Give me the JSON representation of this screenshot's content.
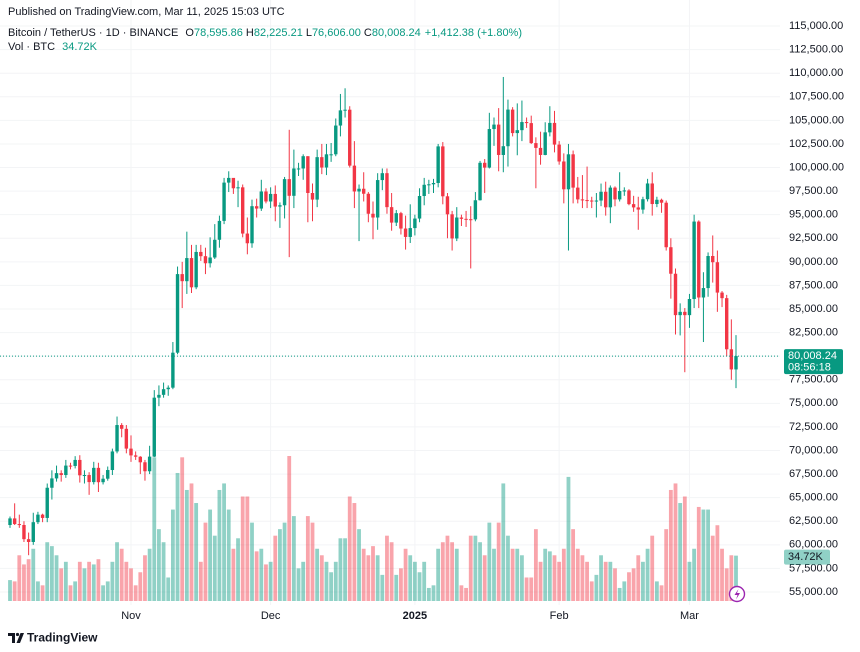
{
  "chart_data": {
    "type": "candlestick",
    "published": "Published on TradingView.com, Mar 11, 2025 15:03 UTC",
    "legend": {
      "symbol": "Bitcoin / TetherUS · 1D · BINANCE",
      "items": [
        {
          "key": "O",
          "value": "78,595.86"
        },
        {
          "key": "H",
          "value": "82,225.21"
        },
        {
          "key": "L",
          "value": "76,606.00"
        },
        {
          "key": "C",
          "value": "80,008.24"
        }
      ],
      "change": "+1,412.38 (+1.80%)",
      "volume_name": "Vol · BTC",
      "volume_value": "34.72K"
    },
    "price_tag": {
      "price": "80,008.24",
      "countdown": "08:56:18"
    },
    "footer": "TradingView",
    "up_color": "#089981",
    "down_color": "#f23645",
    "grid": true,
    "categories": [
      null,
      null,
      null,
      null,
      null,
      null,
      null,
      null,
      null,
      null,
      null,
      null,
      null,
      null,
      null,
      null,
      null,
      null,
      null,
      null,
      null,
      null,
      null,
      null,
      null,
      null,
      "Nov",
      null,
      null,
      null,
      null,
      null,
      null,
      null,
      null,
      null,
      null,
      null,
      null,
      null,
      null,
      null,
      null,
      null,
      null,
      null,
      null,
      null,
      null,
      null,
      null,
      null,
      null,
      null,
      null,
      null,
      "Dec",
      null,
      null,
      null,
      null,
      null,
      null,
      null,
      null,
      null,
      null,
      null,
      null,
      null,
      null,
      null,
      null,
      null,
      null,
      null,
      null,
      null,
      null,
      null,
      null,
      null,
      null,
      null,
      null,
      null,
      null,
      "2025",
      null,
      null,
      null,
      null,
      null,
      null,
      null,
      null,
      null,
      null,
      null,
      null,
      null,
      null,
      null,
      null,
      null,
      null,
      null,
      null,
      null,
      null,
      null,
      null,
      null,
      null,
      null,
      null,
      null,
      null,
      "Feb",
      null,
      null,
      null,
      null,
      null,
      null,
      null,
      null,
      null,
      null,
      null,
      null,
      null,
      null,
      null,
      null,
      null,
      null,
      null,
      null,
      null,
      null,
      null,
      null,
      null,
      null,
      null,
      "Mar",
      null,
      null,
      null,
      null,
      null,
      null,
      null,
      null,
      null,
      null
    ],
    "open": [
      62100,
      62800,
      62200,
      62100,
      60600,
      60300,
      62400,
      63200,
      62850,
      66050,
      67040,
      67600,
      67400,
      68400,
      68360,
      69000,
      67370,
      67400,
      66650,
      68160,
      66640,
      67010,
      67930,
      69900,
      72700,
      72300,
      70200,
      69480,
      69340,
      68750,
      67800,
      69350,
      75600,
      75900,
      76500,
      76660,
      80370,
      88700,
      87950,
      90400,
      87300,
      91050,
      90600,
      89850,
      90460,
      92340,
      94340,
      98400,
      98900,
      97800,
      97900,
      93000,
      91970,
      95900,
      95650,
      97460,
      96400,
      97200,
      95860,
      96000,
      98770,
      97000,
      99900,
      99900,
      101200,
      97300,
      96600,
      101100,
      100000,
      101400,
      101400,
      104450,
      106060,
      106130,
      100200,
      97460,
      97750,
      97220,
      95100,
      94700,
      98670,
      99400,
      95800,
      94160,
      95160,
      93530,
      92640,
      93580,
      94590,
      96980,
      98170,
      98220,
      98360,
      102240,
      96950,
      95040,
      92480,
      94700,
      94560,
      94520,
      94500,
      96530,
      100500,
      99990,
      104080,
      104550,
      101330,
      102260,
      106140,
      103650,
      103960,
      104820,
      104710,
      102590,
      102080,
      101330,
      103730,
      104730,
      102430,
      100640,
      97690,
      101400,
      97870,
      96620,
      96550,
      96500,
      96480,
      96500,
      97430,
      95780,
      97870,
      96620,
      97510,
      97570,
      96120,
      95770,
      95540,
      96640,
      98310,
      96130,
      96580,
      96270,
      91550,
      88740,
      84350,
      84700,
      84350,
      86060,
      94270,
      86220,
      87220,
      90620,
      89960,
      86740,
      86150,
      80730,
      78595.86
    ],
    "high": [
      63000,
      64400,
      63200,
      62500,
      61300,
      63400,
      63500,
      63300,
      66500,
      67900,
      68400,
      67900,
      69000,
      68700,
      69400,
      69500,
      67900,
      67700,
      68800,
      68700,
      67400,
      68300,
      70200,
      73600,
      72900,
      72700,
      71600,
      69900,
      69400,
      69000,
      70500,
      76400,
      76900,
      77200,
      76900,
      81500,
      89500,
      90000,
      93200,
      91800,
      91800,
      91800,
      91500,
      92600,
      94000,
      94900,
      98900,
      99600,
      98800,
      98600,
      98200,
      94700,
      96600,
      96700,
      98700,
      97800,
      97900,
      98100,
      96300,
      99000,
      104000,
      101900,
      100500,
      101400,
      101200,
      98300,
      101900,
      102500,
      102500,
      102600,
      105200,
      107800,
      108400,
      106500,
      102800,
      98200,
      99500,
      97400,
      96400,
      99400,
      99900,
      99900,
      97300,
      95500,
      95300,
      94900,
      96100,
      95000,
      97800,
      98900,
      98700,
      98800,
      102500,
      102700,
      97300,
      95400,
      95800,
      95000,
      95400,
      95900,
      97400,
      100700,
      100900,
      105800,
      105300,
      106300,
      109600,
      107200,
      106400,
      106800,
      107100,
      105300,
      105500,
      103200,
      103800,
      104800,
      106500,
      106000,
      102800,
      101500,
      102500,
      101800,
      99000,
      99200,
      100100,
      96900,
      97300,
      98300,
      98500,
      98100,
      98000,
      99500,
      97900,
      97700,
      97000,
      96900,
      96900,
      98800,
      99500,
      96900,
      96700,
      96500,
      92500,
      89300,
      85600,
      85100,
      86600,
      95000,
      94400,
      88900,
      91000,
      92800,
      91200,
      86900,
      86500,
      83900,
      82225.21
    ],
    "low": [
      61800,
      62100,
      61800,
      60300,
      58900,
      60000,
      62200,
      62400,
      62400,
      64800,
      66700,
      66700,
      67100,
      68000,
      68100,
      66600,
      66500,
      65300,
      66400,
      65600,
      66400,
      66800,
      67400,
      69700,
      71400,
      69700,
      68800,
      69000,
      67500,
      66800,
      67500,
      69300,
      74700,
      75600,
      75800,
      76500,
      80200,
      85100,
      86600,
      86700,
      87100,
      90100,
      88700,
      89400,
      90300,
      91500,
      94000,
      97400,
      97200,
      95800,
      92600,
      90800,
      91500,
      94700,
      95400,
      96200,
      95700,
      94300,
      93600,
      94600,
      90500,
      95700,
      99100,
      98700,
      94200,
      94300,
      95800,
      99300,
      99200,
      100600,
      101200,
      103300,
      105300,
      100000,
      95700,
      92200,
      96400,
      94200,
      92400,
      93400,
      97600,
      95100,
      93300,
      93800,
      92900,
      91300,
      92000,
      92800,
      94200,
      96000,
      97200,
      97300,
      97900,
      96100,
      92500,
      91200,
      92200,
      93800,
      93700,
      89300,
      94300,
      96500,
      97300,
      99900,
      102300,
      99600,
      99500,
      100100,
      103300,
      101300,
      102800,
      104200,
      102500,
      97800,
      100300,
      101300,
      103300,
      101600,
      100300,
      96200,
      91200,
      96200,
      96200,
      95700,
      95700,
      95700,
      94700,
      95900,
      94900,
      94100,
      95900,
      96400,
      97000,
      96000,
      95300,
      93400,
      95100,
      96400,
      94900,
      95800,
      95200,
      91200,
      86100,
      82300,
      82200,
      78300,
      83000,
      85100,
      85100,
      81500,
      86300,
      87800,
      84700,
      85200,
      80000,
      77500,
      76606
    ],
    "close": [
      62800,
      62200,
      62100,
      60600,
      60300,
      62400,
      63200,
      62850,
      66050,
      67040,
      67600,
      67400,
      68400,
      68360,
      69000,
      67370,
      67400,
      66650,
      68160,
      66640,
      67010,
      67930,
      69900,
      72700,
      72300,
      70200,
      69480,
      69340,
      68750,
      67800,
      69350,
      75600,
      75900,
      76500,
      76660,
      80370,
      88700,
      87950,
      90400,
      87300,
      91050,
      90600,
      89850,
      90460,
      92340,
      94340,
      98400,
      98900,
      97800,
      97900,
      93000,
      91970,
      95900,
      95650,
      97460,
      96400,
      97200,
      95860,
      96000,
      98770,
      97000,
      99900,
      99900,
      101200,
      97300,
      96600,
      101100,
      100000,
      101400,
      101400,
      104450,
      106060,
      106130,
      100200,
      97460,
      97750,
      97220,
      95100,
      94700,
      98670,
      99400,
      95800,
      94160,
      95160,
      93530,
      92640,
      93580,
      94590,
      96980,
      98170,
      98220,
      98360,
      102240,
      96950,
      95040,
      92480,
      94700,
      94560,
      94520,
      94500,
      96530,
      100500,
      99990,
      104080,
      104550,
      101330,
      102260,
      106140,
      103650,
      103960,
      104820,
      104710,
      102590,
      102080,
      101330,
      103730,
      104730,
      102430,
      100640,
      97690,
      101400,
      97870,
      96620,
      96550,
      96500,
      96480,
      96500,
      97430,
      95780,
      97870,
      96620,
      97510,
      97570,
      96120,
      95770,
      95540,
      96640,
      98310,
      96130,
      96580,
      96270,
      91550,
      88740,
      84350,
      84700,
      84350,
      86060,
      94270,
      86220,
      87220,
      90620,
      89960,
      86740,
      86150,
      80730,
      78595.86,
      80008.24
    ],
    "volume": [
      16000,
      15000,
      35000,
      28000,
      32000,
      40000,
      15000,
      12000,
      45000,
      42000,
      35000,
      25000,
      30000,
      12000,
      15000,
      30000,
      25000,
      30000,
      28000,
      32000,
      12000,
      15000,
      30000,
      45000,
      40000,
      30000,
      25000,
      12000,
      22000,
      35000,
      40000,
      110000,
      55000,
      45000,
      18000,
      70000,
      98000,
      110000,
      85000,
      90000,
      75000,
      30000,
      60000,
      70000,
      50000,
      85000,
      90000,
      70000,
      40000,
      48000,
      80000,
      80000,
      60000,
      38000,
      40000,
      28000,
      30000,
      50000,
      55000,
      60000,
      111000,
      65000,
      25000,
      30000,
      65000,
      60000,
      40000,
      35000,
      30000,
      22000,
      30000,
      48000,
      48000,
      80000,
      75000,
      55000,
      40000,
      35000,
      42000,
      35000,
      20000,
      50000,
      45000,
      20000,
      25000,
      40000,
      35000,
      30000,
      22000,
      30000,
      10000,
      12000,
      40000,
      45000,
      50000,
      45000,
      40000,
      12000,
      10000,
      50000,
      50000,
      45000,
      35000,
      60000,
      40000,
      60000,
      90000,
      50000,
      40000,
      40000,
      35000,
      18000,
      18000,
      55000,
      30000,
      40000,
      38000,
      35000,
      30000,
      40000,
      95000,
      55000,
      40000,
      35000,
      30000,
      15000,
      20000,
      35000,
      30000,
      30000,
      25000,
      10000,
      15000,
      22000,
      25000,
      35000,
      30000,
      40000,
      50000,
      15000,
      12000,
      55000,
      85000,
      90000,
      75000,
      80000,
      30000,
      40000,
      72000,
      70000,
      70000,
      50000,
      58000,
      40000,
      25000,
      35000,
      34720
    ],
    "ylim": [
      53620,
      117760
    ],
    "yticks": [
      {
        "value": 55000,
        "label": "55,000.00"
      },
      {
        "value": 57500,
        "label": "57,500.00"
      },
      {
        "value": 60000,
        "label": "60,000.00"
      },
      {
        "value": 62500,
        "label": "62,500.00"
      },
      {
        "value": 65000,
        "label": "65,000.00"
      },
      {
        "value": 67500,
        "label": "67,500.00"
      },
      {
        "value": 70000,
        "label": "70,000.00"
      },
      {
        "value": 72500,
        "label": "72,500.00"
      },
      {
        "value": 75000,
        "label": "75,000.00"
      },
      {
        "value": 77500,
        "label": "77,500.00"
      },
      {
        "value": 80000,
        "label": "80,000.00"
      },
      {
        "value": 82500,
        "label": "82,500.00"
      },
      {
        "value": 85000,
        "label": "85,000.00"
      },
      {
        "value": 87500,
        "label": "87,500.00"
      },
      {
        "value": 90000,
        "label": "90,000.00"
      },
      {
        "value": 92500,
        "label": "92,500.00"
      },
      {
        "value": 95000,
        "label": "95,000.00"
      },
      {
        "value": 97500,
        "label": "97,500.00"
      },
      {
        "value": 100000,
        "label": "100,000.00"
      },
      {
        "value": 102500,
        "label": "102,500.00"
      },
      {
        "value": 105000,
        "label": "105,000.00"
      },
      {
        "value": 107500,
        "label": "107,500.00"
      },
      {
        "value": 110000,
        "label": "110,000.00"
      },
      {
        "value": 112500,
        "label": "112,500.00"
      },
      {
        "value": 115000,
        "label": "115,000.00"
      }
    ]
  }
}
